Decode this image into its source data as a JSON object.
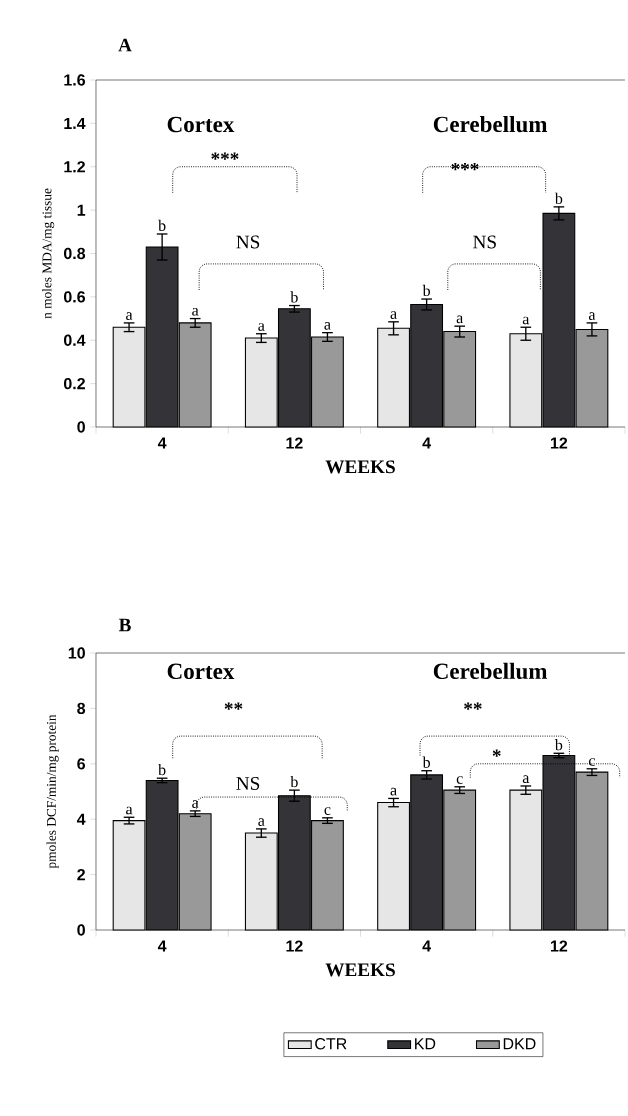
{
  "chart_data": [
    {
      "type": "bar",
      "title": "A",
      "xlabel": "WEEKS",
      "ylabel": "n moles MDA/mg tissue",
      "categories": [
        "4",
        "12",
        "4",
        "12"
      ],
      "ylim": [
        0,
        1.6
      ],
      "yticks": [
        0,
        0.2,
        0.4,
        0.6,
        0.8,
        1,
        1.2,
        1.4,
        1.6
      ],
      "series": [
        {
          "color": "#e6e6e6",
          "values": [
            0.46,
            0.41,
            0.455,
            0.43
          ],
          "errors": [
            0.02,
            0.02,
            0.03,
            0.03
          ],
          "value_labels": [
            "a",
            "a",
            "a",
            "a"
          ]
        },
        {
          "color": "#333338",
          "values": [
            0.83,
            0.545,
            0.565,
            0.985
          ],
          "errors": [
            0.06,
            0.015,
            0.025,
            0.03
          ],
          "value_labels": [
            "b",
            "b",
            "b",
            "b"
          ]
        },
        {
          "color": "#999999",
          "values": [
            0.48,
            0.415,
            0.44,
            0.45
          ],
          "errors": [
            0.02,
            0.02,
            0.025,
            0.03
          ],
          "value_labels": [
            "a",
            "a",
            "a",
            "a"
          ]
        }
      ],
      "annotations": [
        "Cortex",
        "Cerebellum",
        "***",
        "NS",
        "***",
        "NS"
      ]
    },
    {
      "type": "bar",
      "title": "B",
      "xlabel": "WEEKS",
      "ylabel": "pmoles DCF/min/mg protein",
      "categories": [
        "4",
        "12",
        "4",
        "12"
      ],
      "ylim": [
        0,
        10
      ],
      "yticks": [
        0,
        2,
        4,
        6,
        8,
        10
      ],
      "legend": "bottom",
      "series": [
        {
          "name": "CTR",
          "color": "#e6e6e6",
          "values": [
            3.95,
            3.5,
            4.6,
            5.05
          ],
          "errors": [
            0.12,
            0.15,
            0.15,
            0.15
          ],
          "value_labels": [
            "a",
            "a",
            "a",
            "a"
          ]
        },
        {
          "name": "KD",
          "color": "#333338",
          "values": [
            5.4,
            4.85,
            5.6,
            6.3
          ],
          "errors": [
            0.08,
            0.2,
            0.15,
            0.08
          ],
          "value_labels": [
            "b",
            "b",
            "b",
            "b"
          ]
        },
        {
          "name": "DKD",
          "color": "#999999",
          "values": [
            4.2,
            3.95,
            5.05,
            5.7
          ],
          "errors": [
            0.1,
            0.1,
            0.12,
            0.12
          ],
          "value_labels": [
            "a",
            "c",
            "c",
            "c"
          ]
        }
      ],
      "annotations": [
        "Cortex",
        "Cerebellum",
        "**",
        "NS",
        "**",
        "*"
      ]
    }
  ]
}
